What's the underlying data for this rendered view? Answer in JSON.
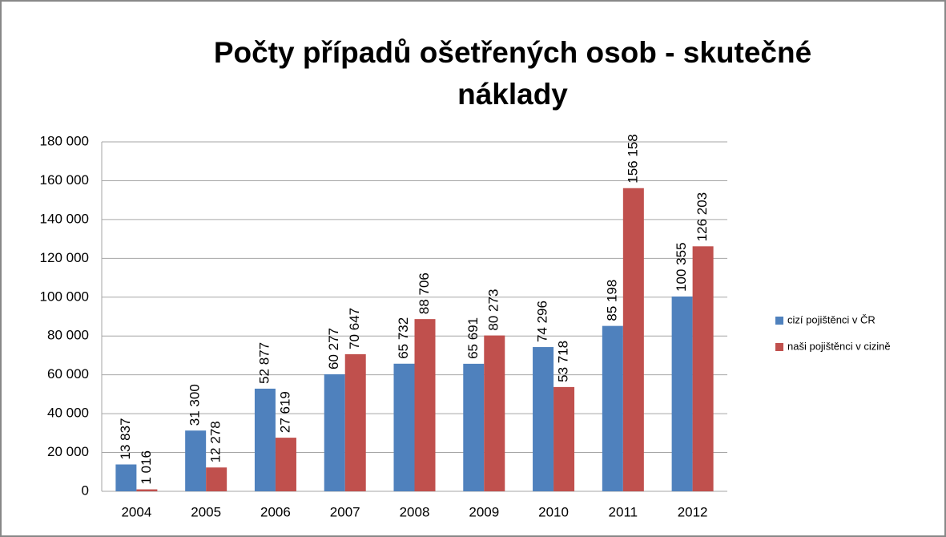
{
  "chart_data": {
    "type": "bar",
    "title": "Počty případů ošetřených osob - skutečné náklady",
    "categories": [
      "2004",
      "2005",
      "2006",
      "2007",
      "2008",
      "2009",
      "2010",
      "2011",
      "2012"
    ],
    "series": [
      {
        "name": "cizí pojištěnci v ČR",
        "color": "#4f81bd",
        "values": [
          13837,
          31300,
          52877,
          60277,
          65732,
          65691,
          74296,
          85198,
          100355
        ],
        "value_labels": [
          "13 837",
          "31 300",
          "52 877",
          "60 277",
          "65 732",
          "65 691",
          "74 296",
          "85 198",
          "100 355"
        ]
      },
      {
        "name": "naši pojištěnci v cizině",
        "color": "#c0504d",
        "values": [
          1016,
          12278,
          27619,
          70647,
          88706,
          80273,
          53718,
          156158,
          126203
        ],
        "value_labels": [
          "1 016",
          "12 278",
          "27 619",
          "70 647",
          "88 706",
          "80 273",
          "53 718",
          "156 158",
          "126 203"
        ]
      }
    ],
    "ylim": [
      0,
      180000
    ],
    "yticks": [
      0,
      {
        "value": 20000,
        "label": "20 000"
      },
      {
        "value": 40000,
        "label": "40 000"
      },
      {
        "value": 60000,
        "label": "60 000"
      },
      {
        "value": 80000,
        "label": "80 000"
      },
      {
        "value": 100000,
        "label": "100 000"
      },
      {
        "value": 120000,
        "label": "120 000"
      },
      {
        "value": 140000,
        "label": "140 000"
      },
      {
        "value": 160000,
        "label": "160 000"
      },
      {
        "value": 180000,
        "label": "180 000"
      }
    ],
    "grid": true,
    "legend": "right"
  }
}
